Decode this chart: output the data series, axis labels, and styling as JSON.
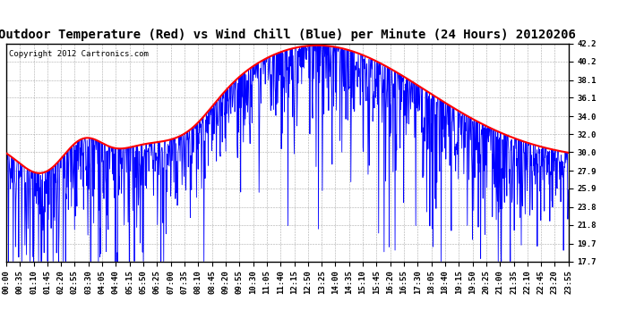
{
  "title": "Outdoor Temperature (Red) vs Wind Chill (Blue) per Minute (24 Hours) 20120206",
  "copyright_text": "Copyright 2012 Cartronics.com",
  "yticks": [
    42.2,
    40.2,
    38.1,
    36.1,
    34.0,
    32.0,
    30.0,
    27.9,
    25.9,
    23.8,
    21.8,
    19.7,
    17.7
  ],
  "ymin": 17.7,
  "ymax": 42.2,
  "xtick_labels": [
    "00:00",
    "00:35",
    "01:10",
    "01:45",
    "02:20",
    "02:55",
    "03:30",
    "04:05",
    "04:40",
    "05:15",
    "05:50",
    "06:25",
    "07:00",
    "07:35",
    "08:10",
    "08:45",
    "09:20",
    "09:55",
    "10:30",
    "11:05",
    "11:40",
    "12:15",
    "12:50",
    "13:25",
    "14:00",
    "14:35",
    "15:10",
    "15:45",
    "16:20",
    "16:55",
    "17:30",
    "18:05",
    "18:40",
    "19:15",
    "19:50",
    "20:25",
    "21:00",
    "21:35",
    "22:10",
    "22:45",
    "23:20",
    "23:55"
  ],
  "red_color": "#FF0000",
  "blue_color": "#0000FF",
  "grid_color": "#AAAAAA",
  "bg_color": "#FFFFFF",
  "title_fontsize": 10,
  "copyright_fontsize": 6.5,
  "tick_fontsize": 6.5,
  "red_linewidth": 1.5,
  "blue_linewidth": 0.6
}
